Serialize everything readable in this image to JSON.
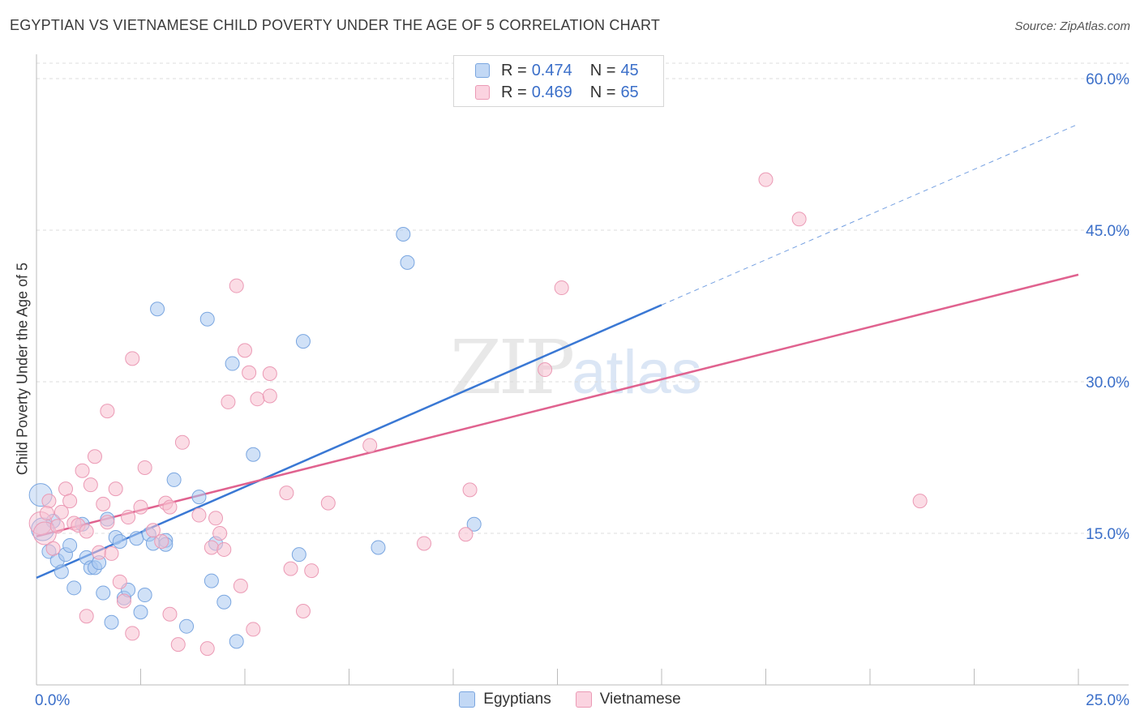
{
  "title": "EGYPTIAN VS VIETNAMESE CHILD POVERTY UNDER THE AGE OF 5 CORRELATION CHART",
  "source": "Source: ZipAtlas.com",
  "watermark": {
    "zip": "ZIP",
    "atlas": "atlas"
  },
  "legend": [
    {
      "r_label": "R = ",
      "r_value": "0.474",
      "n_label": "N = ",
      "n_value": "45",
      "color": "#aac8f0"
    },
    {
      "r_label": "R = ",
      "r_value": "0.469",
      "n_label": "N = ",
      "n_value": "65",
      "color": "#f7bfd0"
    }
  ],
  "bottom_legend": [
    {
      "label": "Egyptians",
      "color": "#aac8f0"
    },
    {
      "label": "Vietnamese",
      "color": "#f7bfd0"
    }
  ],
  "chart_data": {
    "type": "scatter",
    "ylabel": "Child Poverty Under the Age of 5",
    "xlabel": "",
    "xlim": [
      0,
      25
    ],
    "ylim": [
      0,
      60
    ],
    "x_tick_labels": [
      "0.0%",
      "25.0%"
    ],
    "y_tick_labels": [
      "15.0%",
      "30.0%",
      "45.0%",
      "60.0%"
    ],
    "y_ticks": [
      15,
      30,
      45,
      60
    ],
    "grid": true,
    "legend_position": "top-center",
    "colors": {
      "Egyptians": "#3a78d4",
      "Vietnamese": "#e0628f"
    },
    "series": [
      {
        "name": "Egyptians",
        "fill": "#aac8f0",
        "stroke": "#7aa6e0",
        "trend": {
          "x": [
            0,
            15
          ],
          "y": [
            10.6,
            37.6
          ],
          "dashed_to": [
            25,
            55.5
          ]
        },
        "points": [
          [
            0.1,
            18.8
          ],
          [
            0.3,
            13.2
          ],
          [
            0.4,
            16.2
          ],
          [
            0.5,
            12.3
          ],
          [
            0.6,
            11.2
          ],
          [
            0.7,
            12.9
          ],
          [
            0.8,
            13.8
          ],
          [
            0.9,
            9.6
          ],
          [
            1.1,
            15.9
          ],
          [
            1.2,
            12.6
          ],
          [
            1.3,
            11.6
          ],
          [
            1.4,
            11.6
          ],
          [
            1.5,
            12.1
          ],
          [
            1.6,
            9.1
          ],
          [
            1.7,
            16.4
          ],
          [
            1.8,
            6.2
          ],
          [
            1.9,
            14.6
          ],
          [
            2.0,
            14.2
          ],
          [
            2.1,
            8.6
          ],
          [
            2.2,
            9.4
          ],
          [
            2.4,
            14.5
          ],
          [
            2.5,
            7.2
          ],
          [
            2.6,
            8.9
          ],
          [
            2.7,
            14.9
          ],
          [
            2.8,
            14.0
          ],
          [
            2.9,
            37.2
          ],
          [
            3.1,
            14.3
          ],
          [
            3.1,
            13.9
          ],
          [
            3.3,
            20.3
          ],
          [
            3.6,
            5.8
          ],
          [
            3.9,
            18.6
          ],
          [
            4.1,
            36.2
          ],
          [
            4.2,
            10.3
          ],
          [
            4.3,
            14.0
          ],
          [
            4.5,
            8.2
          ],
          [
            4.7,
            31.8
          ],
          [
            4.8,
            4.3
          ],
          [
            5.2,
            22.8
          ],
          [
            6.3,
            12.9
          ],
          [
            6.4,
            34.0
          ],
          [
            8.2,
            13.6
          ],
          [
            8.8,
            44.6
          ],
          [
            8.9,
            41.8
          ],
          [
            10.5,
            15.9
          ],
          [
            0.15,
            15.4
          ]
        ]
      },
      {
        "name": "Vietnamese",
        "fill": "#f7bfd0",
        "stroke": "#eb9ab5",
        "trend": {
          "x": [
            0,
            25
          ],
          "y": [
            14.7,
            40.6
          ]
        },
        "points": [
          [
            0.1,
            16.0
          ],
          [
            0.2,
            15.0
          ],
          [
            0.3,
            18.2
          ],
          [
            0.4,
            13.5
          ],
          [
            0.5,
            15.7
          ],
          [
            0.6,
            17.1
          ],
          [
            0.7,
            19.4
          ],
          [
            0.8,
            18.2
          ],
          [
            0.9,
            16.0
          ],
          [
            1.0,
            15.8
          ],
          [
            1.1,
            21.2
          ],
          [
            1.2,
            15.2
          ],
          [
            1.2,
            6.8
          ],
          [
            1.3,
            19.8
          ],
          [
            1.4,
            22.6
          ],
          [
            1.5,
            13.1
          ],
          [
            1.6,
            17.9
          ],
          [
            1.7,
            16.1
          ],
          [
            1.7,
            27.1
          ],
          [
            1.8,
            13.0
          ],
          [
            1.9,
            19.4
          ],
          [
            2.0,
            10.2
          ],
          [
            2.1,
            8.3
          ],
          [
            2.2,
            16.6
          ],
          [
            2.3,
            5.1
          ],
          [
            2.3,
            32.3
          ],
          [
            2.5,
            17.6
          ],
          [
            2.6,
            21.5
          ],
          [
            2.8,
            15.3
          ],
          [
            3.0,
            14.2
          ],
          [
            3.1,
            18.0
          ],
          [
            3.2,
            17.6
          ],
          [
            3.2,
            7.0
          ],
          [
            3.4,
            4.0
          ],
          [
            3.5,
            24.0
          ],
          [
            3.9,
            16.8
          ],
          [
            4.1,
            3.6
          ],
          [
            4.2,
            13.6
          ],
          [
            4.3,
            16.5
          ],
          [
            4.4,
            15.0
          ],
          [
            4.5,
            13.4
          ],
          [
            4.6,
            28.0
          ],
          [
            4.8,
            39.5
          ],
          [
            4.9,
            9.8
          ],
          [
            5.0,
            33.1
          ],
          [
            5.1,
            30.9
          ],
          [
            5.2,
            5.5
          ],
          [
            5.3,
            28.3
          ],
          [
            5.6,
            28.6
          ],
          [
            5.6,
            30.8
          ],
          [
            6.0,
            19.0
          ],
          [
            6.1,
            11.5
          ],
          [
            6.4,
            7.3
          ],
          [
            6.6,
            11.3
          ],
          [
            7.0,
            18.0
          ],
          [
            8.0,
            23.7
          ],
          [
            9.3,
            14.0
          ],
          [
            10.3,
            14.9
          ],
          [
            10.4,
            19.3
          ],
          [
            12.2,
            31.2
          ],
          [
            12.6,
            39.3
          ],
          [
            17.5,
            50.0
          ],
          [
            18.3,
            46.1
          ],
          [
            21.2,
            18.2
          ],
          [
            0.25,
            17.0
          ]
        ]
      }
    ]
  }
}
